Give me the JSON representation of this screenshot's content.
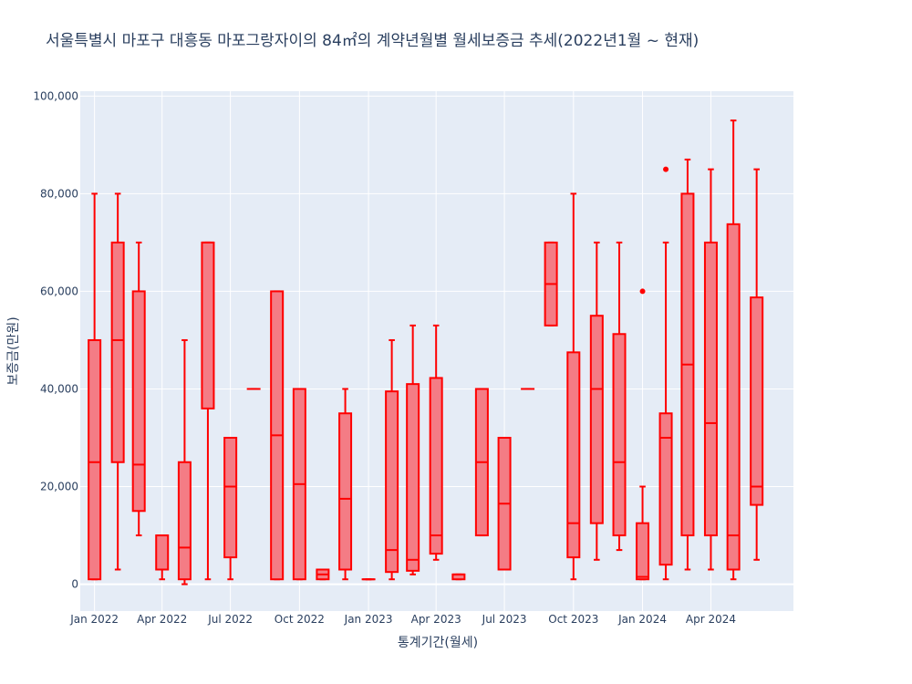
{
  "chart_data": {
    "type": "box",
    "title": "서울특별시 마포구 대흥동 마포그랑자이의 84㎡의 계약년월별 월세보증금 추세(2022년1월 ~ 현재)",
    "xlabel": "통계기간(월세)",
    "ylabel": "보증금(만원)",
    "ylim": [
      -5500,
      101000
    ],
    "yticks": [
      0,
      20000,
      40000,
      60000,
      80000,
      100000
    ],
    "ytick_labels": [
      "0",
      "20,000",
      "40,000",
      "60,000",
      "80,000",
      "100,000"
    ],
    "xticks": [
      "2022-01",
      "2022-04",
      "2022-07",
      "2022-10",
      "2023-01",
      "2023-04",
      "2023-07",
      "2023-10",
      "2024-01",
      "2024-04"
    ],
    "xtick_labels": [
      "Jan 2022",
      "Apr 2022",
      "Jul 2022",
      "Oct 2022",
      "Jan 2023",
      "Apr 2023",
      "Jul 2023",
      "Oct 2023",
      "Jan 2024",
      "Apr 2024"
    ],
    "x_range": [
      "2021-12-13",
      "2024-07-20"
    ],
    "grid": true,
    "colors": {
      "line": "#ff0000",
      "fill": "#f47c85",
      "plot_bg": "#e5ecf6",
      "grid": "#ffffff",
      "text": "#2a3f5f"
    },
    "boxes": [
      {
        "month": "2022-01",
        "min": 1000,
        "q1": 1000,
        "median": 25000,
        "q3": 50000,
        "max": 80000,
        "outliers": []
      },
      {
        "month": "2022-02",
        "min": 3000,
        "q1": 25000,
        "median": 50000,
        "q3": 70000,
        "max": 80000,
        "outliers": []
      },
      {
        "month": "2022-03",
        "min": 10000,
        "q1": 15000,
        "median": 24500,
        "q3": 60000,
        "max": 70000,
        "outliers": []
      },
      {
        "month": "2022-04",
        "min": 1000,
        "q1": 3000,
        "median": 10000,
        "q3": 10000,
        "max": 10000,
        "outliers": []
      },
      {
        "month": "2022-05",
        "min": 0,
        "q1": 1000,
        "median": 7500,
        "q3": 25000,
        "max": 50000,
        "outliers": []
      },
      {
        "month": "2022-06",
        "min": 1000,
        "q1": 36000,
        "median": 70000,
        "q3": 70000,
        "max": 70000,
        "outliers": []
      },
      {
        "month": "2022-07",
        "min": 1000,
        "q1": 5500,
        "median": 20000,
        "q3": 30000,
        "max": 30000,
        "outliers": []
      },
      {
        "month": "2022-08",
        "min": 40000,
        "q1": 40000,
        "median": 40000,
        "q3": 40000,
        "max": 40000,
        "outliers": []
      },
      {
        "month": "2022-09",
        "min": 1000,
        "q1": 1000,
        "median": 30500,
        "q3": 60000,
        "max": 60000,
        "outliers": []
      },
      {
        "month": "2022-10",
        "min": 1000,
        "q1": 1000,
        "median": 20500,
        "q3": 40000,
        "max": 40000,
        "outliers": []
      },
      {
        "month": "2022-11",
        "min": 1000,
        "q1": 1000,
        "median": 2000,
        "q3": 3000,
        "max": 3000,
        "outliers": []
      },
      {
        "month": "2022-12",
        "min": 1000,
        "q1": 3000,
        "median": 17500,
        "q3": 35000,
        "max": 40000,
        "outliers": []
      },
      {
        "month": "2023-01",
        "min": 1000,
        "q1": 1000,
        "median": 1000,
        "q3": 1000,
        "max": 1000,
        "outliers": []
      },
      {
        "month": "2023-02",
        "min": 1000,
        "q1": 2500,
        "median": 7000,
        "q3": 39500,
        "max": 50000,
        "outliers": []
      },
      {
        "month": "2023-03",
        "min": 2000,
        "q1": 2750,
        "median": 5000,
        "q3": 41000,
        "max": 53000,
        "outliers": []
      },
      {
        "month": "2023-04",
        "min": 5000,
        "q1": 6250,
        "median": 10000,
        "q3": 42250,
        "max": 53000,
        "outliers": []
      },
      {
        "month": "2023-05",
        "min": 1000,
        "q1": 1000,
        "median": 2000,
        "q3": 2000,
        "max": 2000,
        "outliers": []
      },
      {
        "month": "2023-06",
        "min": 10000,
        "q1": 10000,
        "median": 25000,
        "q3": 40000,
        "max": 40000,
        "outliers": []
      },
      {
        "month": "2023-07",
        "min": 3000,
        "q1": 3000,
        "median": 16500,
        "q3": 30000,
        "max": 30000,
        "outliers": []
      },
      {
        "month": "2023-08",
        "min": 40000,
        "q1": 40000,
        "median": 40000,
        "q3": 40000,
        "max": 40000,
        "outliers": []
      },
      {
        "month": "2023-09",
        "min": 53000,
        "q1": 53000,
        "median": 61500,
        "q3": 70000,
        "max": 70000,
        "outliers": []
      },
      {
        "month": "2023-10",
        "min": 1000,
        "q1": 5500,
        "median": 12500,
        "q3": 47500,
        "max": 80000,
        "outliers": []
      },
      {
        "month": "2023-11",
        "min": 5000,
        "q1": 12500,
        "median": 40000,
        "q3": 55000,
        "max": 70000,
        "outliers": []
      },
      {
        "month": "2023-12",
        "min": 7000,
        "q1": 10000,
        "median": 25000,
        "q3": 51250,
        "max": 70000,
        "outliers": []
      },
      {
        "month": "2024-01",
        "min": 1000,
        "q1": 1000,
        "median": 1500,
        "q3": 12500,
        "max": 20000,
        "outliers": [
          60000
        ]
      },
      {
        "month": "2024-02",
        "min": 1000,
        "q1": 4000,
        "median": 30000,
        "q3": 35000,
        "max": 70000,
        "outliers": [
          85000
        ]
      },
      {
        "month": "2024-03",
        "min": 3000,
        "q1": 10000,
        "median": 45000,
        "q3": 80000,
        "max": 87000,
        "outliers": []
      },
      {
        "month": "2024-04",
        "min": 3000,
        "q1": 10000,
        "median": 33000,
        "q3": 70000,
        "max": 85000,
        "outliers": []
      },
      {
        "month": "2024-05",
        "min": 1000,
        "q1": 3000,
        "median": 10000,
        "q3": 73750,
        "max": 95000,
        "outliers": []
      },
      {
        "month": "2024-06",
        "min": 5000,
        "q1": 16250,
        "median": 20000,
        "q3": 58750,
        "max": 85000,
        "outliers": []
      }
    ]
  }
}
